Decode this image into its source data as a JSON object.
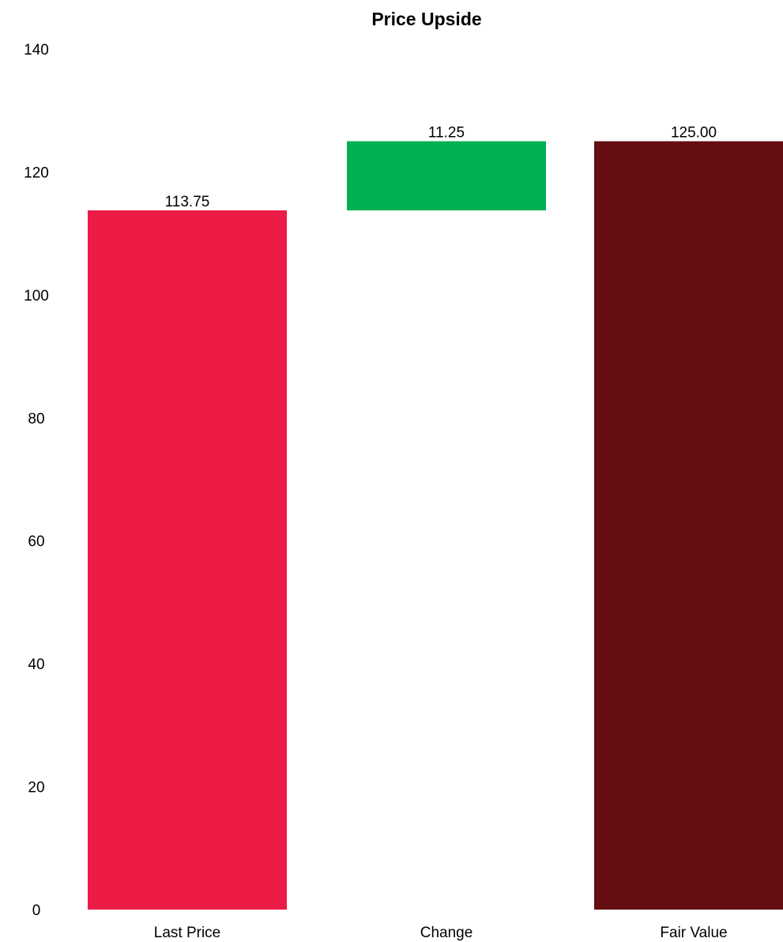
{
  "chart_data": {
    "type": "bar",
    "subtype": "waterfall",
    "title": "Price Upside",
    "xlabel": "",
    "ylabel": "",
    "ylim": [
      0,
      140
    ],
    "yticks": [
      0,
      20,
      40,
      60,
      80,
      100,
      120,
      140
    ],
    "grid": false,
    "legend": "none",
    "categories": [
      "Last Price",
      "Change",
      "Fair Value"
    ],
    "bars": [
      {
        "category": "Last Price",
        "base": 0,
        "value": 113.75,
        "label": "113.75",
        "color": "#EC1C47"
      },
      {
        "category": "Change",
        "base": 113.75,
        "value": 11.25,
        "label": "11.25",
        "color": "#00B050"
      },
      {
        "category": "Fair Value",
        "base": 0,
        "value": 125.0,
        "label": "125.00",
        "color": "#640E12"
      }
    ]
  }
}
